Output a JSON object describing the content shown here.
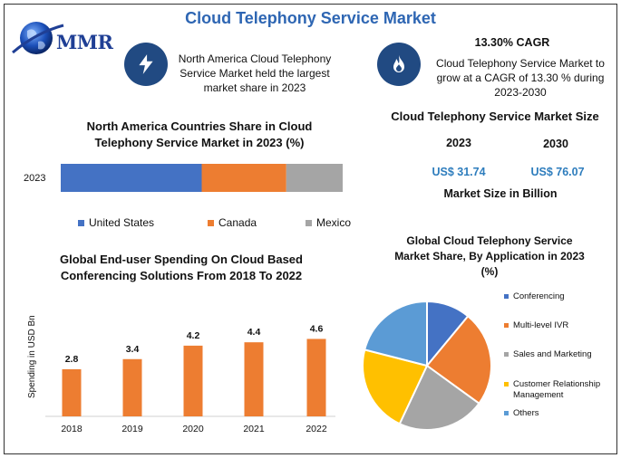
{
  "header": {
    "title": "Cloud Telephony Service Market",
    "logo_text": "MMR"
  },
  "highlights": {
    "north_america": "North America Cloud Telephony Service Market held the largest market share in 2023",
    "cagr_title": "13.30% CAGR",
    "cagr_text": "Cloud Telephony Service Market to grow at a CAGR of 13.30 % during 2023-2030",
    "icons": [
      "lightning-icon",
      "flame-icon"
    ]
  },
  "market_size": {
    "title": "Cloud Telephony Service Market Size",
    "year1": "2023",
    "year2": "2030",
    "value1": "US$ 31.74",
    "value2": "US$ 76.07",
    "unit": "Market Size in Billion"
  },
  "colors": {
    "blue": "#4472c4",
    "orange": "#ed7d31",
    "gray": "#a5a5a5",
    "yellow": "#ffc000",
    "lightblue": "#5b9bd5",
    "title_blue": "#2e66b3"
  },
  "chart_data": [
    {
      "type": "bar",
      "orientation": "horizontal-stacked",
      "title": "North America Countries Share in Cloud Telephony Service  Market in 2023 (%)",
      "categories": [
        "2023"
      ],
      "series": [
        {
          "name": "United States",
          "values": [
            50
          ]
        },
        {
          "name": "Canada",
          "values": [
            30
          ]
        },
        {
          "name": "Mexico",
          "values": [
            20
          ]
        }
      ],
      "legend": "bottom"
    },
    {
      "type": "bar",
      "title": "Global End-user Spending On Cloud Based Conferencing Solutions From 2018 To 2022",
      "ylabel": "Spending in USD Bn",
      "xlabel": "",
      "categories": [
        "2018",
        "2019",
        "2020",
        "2021",
        "2022"
      ],
      "values": [
        2.8,
        3.4,
        4.2,
        4.4,
        4.6
      ],
      "ylim": [
        0,
        5
      ]
    },
    {
      "type": "pie",
      "title": "Global Cloud Telephony Service Market Share, By Application in 2023 (%)",
      "categories": [
        "Conferencing",
        "Multi-level IVR",
        "Sales and Marketing",
        "Customer Relationship Management",
        "Others"
      ],
      "values": [
        11,
        24,
        22,
        22,
        21
      ],
      "legend": "right"
    }
  ]
}
